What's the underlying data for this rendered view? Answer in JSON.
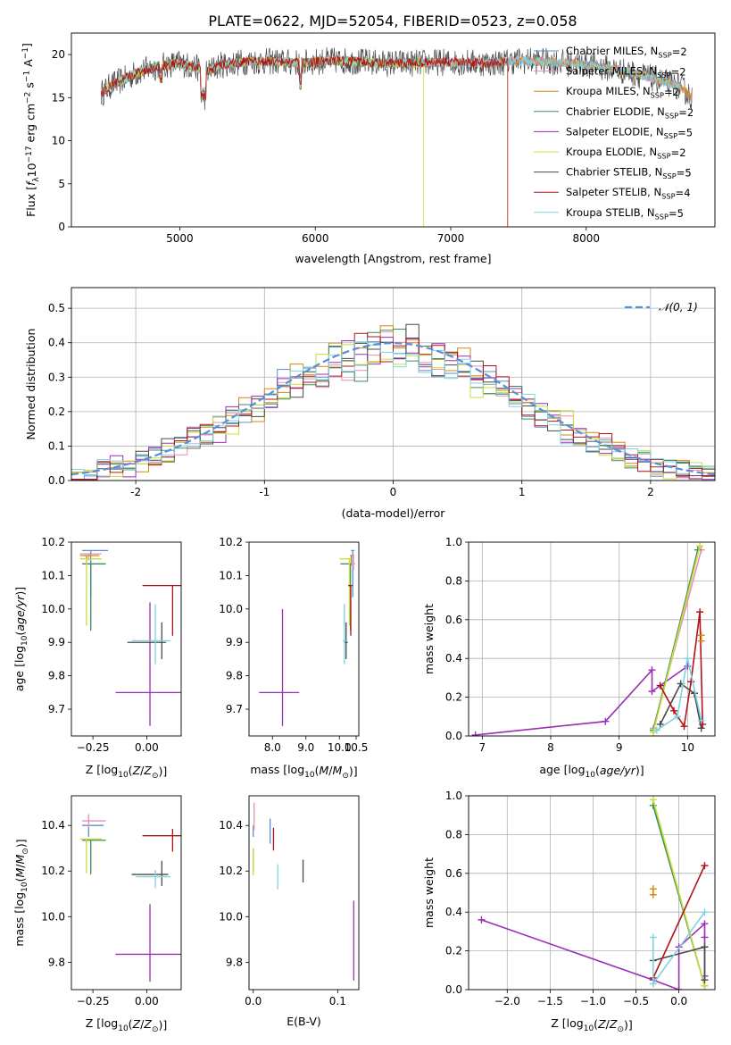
{
  "figure_title": "PLATE=0622, MJD=52054, FIBERID=0523, z=0.058",
  "series_styles": [
    {
      "name": "Chabrier MILES",
      "color": "#5b8ed6"
    },
    {
      "name": "Salpeter MILES",
      "color": "#e88fb4"
    },
    {
      "name": "Kroupa MILES",
      "color": "#d4880f"
    },
    {
      "name": "Chabrier ELODIE",
      "color": "#3c8c5a"
    },
    {
      "name": "Salpeter ELODIE",
      "color": "#9b2fb5"
    },
    {
      "name": "Kroupa ELODIE",
      "color": "#c7df3a"
    },
    {
      "name": "Chabrier STELIB",
      "color": "#4a4a4a"
    },
    {
      "name": "Salpeter STELIB",
      "color": "#b3121a"
    },
    {
      "name": "Kroupa STELIB",
      "color": "#7fd3e0"
    }
  ],
  "chart_data": [
    {
      "id": "spectrum",
      "type": "line",
      "title": "PLATE=0622, MJD=52054, FIBERID=0523, z=0.058",
      "xlabel": "wavelength [Angstrom, rest frame]",
      "ylabel_parts": [
        "Flux [",
        "f",
        "λ",
        "10",
        "−17",
        " erg cm",
        "−2",
        " s",
        "−1",
        " A",
        "−1",
        "]"
      ],
      "xlim": [
        4200,
        8950
      ],
      "ylim": [
        0,
        22.5
      ],
      "xticks": [
        5000,
        6000,
        7000,
        8000
      ],
      "yticks": [
        0,
        5,
        10,
        15,
        20
      ],
      "legend": [
        {
          "label": "Chabrier MILES, N",
          "sub": "SSP",
          "tail": "=2"
        },
        {
          "label": "Salpeter MILES, N",
          "sub": "SSP",
          "tail": "=2"
        },
        {
          "label": "Kroupa MILES, N",
          "sub": "SSP",
          "tail": "=2"
        },
        {
          "label": "Chabrier ELODIE, N",
          "sub": "SSP",
          "tail": "=2"
        },
        {
          "label": "Salpeter ELODIE, N",
          "sub": "SSP",
          "tail": "=5"
        },
        {
          "label": "Kroupa ELODIE, N",
          "sub": "SSP",
          "tail": "=2"
        },
        {
          "label": "Chabrier STELIB, N",
          "sub": "SSP",
          "tail": "=5"
        },
        {
          "label": "Salpeter STELIB, N",
          "sub": "SSP",
          "tail": "=4"
        },
        {
          "label": "Kroupa STELIB, N",
          "sub": "SSP",
          "tail": "=5"
        }
      ],
      "legend_position": "upper-right",
      "continuum": {
        "x": [
          4420,
          4500,
          4600,
          4700,
          4800,
          4900,
          5000,
          5100,
          5200,
          5300,
          5500,
          5700,
          5900,
          6100,
          6300,
          6500,
          6700,
          6900,
          7100,
          7300,
          7500,
          7700,
          7900,
          8100,
          8300,
          8500,
          8700,
          8780
        ],
        "y": [
          15.5,
          16.5,
          17.2,
          18.0,
          18.5,
          18.8,
          19.0,
          18.6,
          18.0,
          18.8,
          19.2,
          19.2,
          19.0,
          19.3,
          19.2,
          19.0,
          19.0,
          19.1,
          19.1,
          19.0,
          19.3,
          19.2,
          19.0,
          18.6,
          18.0,
          17.2,
          16.2,
          15.0
        ]
      },
      "drops": [
        {
          "series": "Kroupa ELODIE",
          "x": 6800
        },
        {
          "series": "Salpeter STELIB",
          "x": 7420
        }
      ]
    },
    {
      "id": "residuals",
      "type": "line",
      "xlabel": "(data-model)/error",
      "ylabel": "Normed distribution",
      "xlim": [
        -2.5,
        2.5
      ],
      "ylim": [
        0,
        0.56
      ],
      "xticks": [
        -2,
        -1,
        0,
        1,
        2
      ],
      "yticks": [
        0.0,
        0.1,
        0.2,
        0.3,
        0.4,
        0.5
      ],
      "legend": [
        {
          "label": "𝒩(0, 1)"
        }
      ],
      "legend_position": "upper-right",
      "bin_width": 0.1
    },
    {
      "id": "age-vs-Z",
      "type": "scatter",
      "xlabel": "Z [log10(Z/Z⊙)]",
      "ylabel": "age  [log10(age/yr)]",
      "xlim": [
        -0.35,
        0.16
      ],
      "ylim": [
        9.62,
        10.2
      ],
      "xticks": [
        -0.25,
        0.0
      ],
      "xtick_labels": [
        "−0.25",
        "0.00"
      ],
      "yticks": [
        9.7,
        9.8,
        9.9,
        10.0,
        10.1,
        10.2
      ],
      "points": [
        {
          "series": "Chabrier MILES",
          "x": -0.26,
          "y": 10.175,
          "xerr": [
            0.04,
            0.08
          ],
          "yerr": [
            0.14,
            0.0
          ]
        },
        {
          "series": "Salpeter MILES",
          "x": -0.27,
          "y": 10.165,
          "xerr": [
            0.04,
            0.06
          ],
          "yerr": [
            0.02,
            0.0
          ]
        },
        {
          "series": "Kroupa MILES",
          "x": -0.28,
          "y": 10.16,
          "xerr": [
            0.03,
            0.06
          ],
          "yerr": [
            0.03,
            0.0
          ]
        },
        {
          "series": "Chabrier ELODIE",
          "x": -0.26,
          "y": 10.135,
          "xerr": [
            0.04,
            0.07
          ],
          "yerr": [
            0.2,
            0.0
          ]
        },
        {
          "series": "Kroupa ELODIE",
          "x": -0.28,
          "y": 10.15,
          "xerr": [
            0.03,
            0.07
          ],
          "yerr": [
            0.2,
            0.0
          ]
        },
        {
          "series": "Salpeter ELODIE",
          "x": 0.015,
          "y": 9.75,
          "xerr": [
            0.16,
            0.16
          ],
          "yerr": [
            0.1,
            0.27
          ]
        },
        {
          "series": "Salpeter STELIB",
          "x": 0.12,
          "y": 10.07,
          "xerr": [
            0.14,
            0.05
          ],
          "yerr": [
            0.15,
            0.0
          ]
        },
        {
          "series": "Chabrier STELIB",
          "x": 0.07,
          "y": 9.9,
          "xerr": [
            0.16,
            0.02
          ],
          "yerr": [
            0.05,
            0.06
          ]
        },
        {
          "series": "Kroupa STELIB",
          "x": 0.04,
          "y": 9.905,
          "xerr": [
            0.11,
            0.07
          ],
          "yerr": [
            0.07,
            0.11
          ]
        }
      ]
    },
    {
      "id": "age-vs-mass",
      "type": "scatter",
      "xlabel": "mass [log10(M/M⊙)]",
      "xlim": [
        7.3,
        10.58
      ],
      "ylim": [
        9.62,
        10.2
      ],
      "xticks": [
        8.0,
        8.5,
        9.0,
        9.5,
        10.0,
        10.5
      ],
      "xtick_labels": [
        "",
        "",
        "",
        "",
        "",
        "10.5"
      ],
      "xtick_labels_shown": [
        "8.0",
        "8.5",
        "9.0",
        "9.5",
        "10.0",
        "10.5"
      ],
      "yticks": [
        9.7,
        9.8,
        9.9,
        10.0,
        10.1,
        10.2
      ],
      "points": [
        {
          "series": "Chabrier MILES",
          "x": 10.4,
          "y": 10.175,
          "xerr": [
            0.05,
            0.05
          ],
          "yerr": [
            0.14,
            0.0
          ]
        },
        {
          "series": "Salpeter MILES",
          "x": 10.42,
          "y": 10.135,
          "xerr": [
            0.05,
            0.05
          ],
          "yerr": [
            0.02,
            0.03
          ]
        },
        {
          "series": "Kroupa MILES",
          "x": 10.35,
          "y": 10.16,
          "xerr": [
            0.03,
            0.03
          ],
          "yerr": [
            0.03,
            0.0
          ]
        },
        {
          "series": "Chabrier ELODIE",
          "x": 10.33,
          "y": 10.135,
          "xerr": [
            0.3,
            0.02
          ],
          "yerr": [
            0.2,
            0.0
          ]
        },
        {
          "series": "Kroupa ELODIE",
          "x": 10.3,
          "y": 10.15,
          "xerr": [
            0.3,
            0.02
          ],
          "yerr": [
            0.2,
            0.0
          ]
        },
        {
          "series": "Salpeter ELODIE",
          "x": 8.3,
          "y": 9.75,
          "xerr": [
            0.7,
            0.5
          ],
          "yerr": [
            0.1,
            0.25
          ]
        },
        {
          "series": "Salpeter STELIB",
          "x": 10.34,
          "y": 10.07,
          "xerr": [
            0.08,
            0.05
          ],
          "yerr": [
            0.15,
            0.0
          ]
        },
        {
          "series": "Chabrier STELIB",
          "x": 10.2,
          "y": 9.9,
          "xerr": [
            0.05,
            0.05
          ],
          "yerr": [
            0.05,
            0.06
          ]
        },
        {
          "series": "Kroupa STELIB",
          "x": 10.15,
          "y": 9.905,
          "xerr": [
            0.05,
            0.05
          ],
          "yerr": [
            0.07,
            0.11
          ]
        }
      ]
    },
    {
      "id": "weight-vs-age",
      "type": "line",
      "xlabel": "age  [log10(age/yr)]",
      "ylabel": "mass weight",
      "xlim": [
        6.8,
        10.4
      ],
      "ylim": [
        0,
        1.0
      ],
      "xticks": [
        7,
        8,
        9,
        10
      ],
      "yticks": [
        0.0,
        0.2,
        0.4,
        0.6,
        0.8,
        1.0
      ],
      "series": [
        {
          "name": "Salpeter ELODIE",
          "x": [
            6.9,
            8.8,
            9.48,
            9.48,
            10.0
          ],
          "y": [
            0.005,
            0.075,
            0.34,
            0.23,
            0.36
          ]
        },
        {
          "name": "Salpeter MILES",
          "x": [
            9.5,
            10.2
          ],
          "y": [
            0.04,
            0.96
          ]
        },
        {
          "name": "Chabrier ELODIE",
          "x": [
            9.5,
            10.15
          ],
          "y": [
            0.03,
            0.96
          ]
        },
        {
          "name": "Kroupa ELODIE",
          "x": [
            9.5,
            10.18
          ],
          "y": [
            0.02,
            0.98
          ]
        },
        {
          "name": "Chabrier STELIB",
          "x": [
            9.6,
            9.9,
            10.1,
            10.2
          ],
          "y": [
            0.06,
            0.27,
            0.22,
            0.04
          ]
        },
        {
          "name": "Salpeter STELIB",
          "x": [
            9.6,
            9.8,
            9.95,
            10.05,
            10.18,
            10.22
          ],
          "y": [
            0.26,
            0.13,
            0.05,
            0.28,
            0.64,
            0.06
          ]
        },
        {
          "name": "Kroupa STELIB",
          "x": [
            9.55,
            9.85,
            10.0,
            10.2
          ],
          "y": [
            0.03,
            0.1,
            0.4,
            0.08
          ]
        },
        {
          "name": "Kroupa MILES",
          "x": [
            10.2,
            10.2
          ],
          "y": [
            0.49,
            0.52
          ]
        }
      ]
    },
    {
      "id": "mass-vs-Z",
      "type": "scatter",
      "xlabel": "Z [log10(Z/Z⊙)]",
      "ylabel": "mass [log10(M/M⊙)]",
      "xlim": [
        -0.35,
        0.16
      ],
      "ylim": [
        9.68,
        10.53
      ],
      "xticks": [
        -0.25,
        0.0
      ],
      "xtick_labels": [
        "−0.25",
        "0.00"
      ],
      "yticks": [
        9.8,
        10.0,
        10.2,
        10.4
      ],
      "points": [
        {
          "series": "Chabrier MILES",
          "x": -0.27,
          "y": 10.4,
          "xerr": [
            0.03,
            0.07
          ],
          "yerr": [
            0.05,
            0.0
          ]
        },
        {
          "series": "Salpeter MILES",
          "x": -0.27,
          "y": 10.42,
          "xerr": [
            0.03,
            0.08
          ],
          "yerr": [
            0.03,
            0.03
          ]
        },
        {
          "series": "Kroupa MILES",
          "x": -0.28,
          "y": 10.34,
          "xerr": [
            0.02,
            0.07
          ],
          "yerr": [
            0.02,
            0.0
          ]
        },
        {
          "series": "Chabrier ELODIE",
          "x": -0.26,
          "y": 10.335,
          "xerr": [
            0.04,
            0.07
          ],
          "yerr": [
            0.15,
            0.0
          ]
        },
        {
          "series": "Kroupa ELODIE",
          "x": -0.28,
          "y": 10.34,
          "xerr": [
            0.03,
            0.07
          ],
          "yerr": [
            0.15,
            0.0
          ]
        },
        {
          "series": "Salpeter ELODIE",
          "x": 0.015,
          "y": 9.835,
          "xerr": [
            0.16,
            0.16
          ],
          "yerr": [
            0.12,
            0.22
          ]
        },
        {
          "series": "Salpeter STELIB",
          "x": 0.12,
          "y": 10.355,
          "xerr": [
            0.14,
            0.07
          ],
          "yerr": [
            0.07,
            0.03
          ]
        },
        {
          "series": "Chabrier STELIB",
          "x": 0.07,
          "y": 10.185,
          "xerr": [
            0.14,
            0.03
          ],
          "yerr": [
            0.05,
            0.06
          ]
        },
        {
          "series": "Kroupa STELIB",
          "x": 0.04,
          "y": 10.175,
          "xerr": [
            0.09,
            0.07
          ],
          "yerr": [
            0.05,
            0.03
          ]
        }
      ]
    },
    {
      "id": "mass-vs-ebv",
      "type": "scatter",
      "xlabel": "E(B-V)",
      "xlim": [
        -0.005,
        0.125
      ],
      "ylim": [
        9.68,
        10.53
      ],
      "xticks": [
        0.0,
        0.1
      ],
      "xtick_labels": [
        "0.0",
        "0.1"
      ],
      "yticks": [
        9.8,
        10.0,
        10.2,
        10.4
      ],
      "points": [
        {
          "series": "Chabrier MILES",
          "x": 0.0,
          "y": 10.4,
          "xerr": [
            0.0,
            0.0
          ],
          "yerr": [
            0.05,
            0.0
          ]
        },
        {
          "series": "Salpeter MILES",
          "x": 0.001,
          "y": 10.44,
          "xerr": [
            0.0,
            0.0
          ],
          "yerr": [
            0.06,
            0.06
          ]
        },
        {
          "series": "Chabrier ELODIE",
          "x": 0.0,
          "y": 10.3,
          "xerr": [
            0.0,
            0.0
          ],
          "yerr": [
            0.1,
            0.0
          ]
        },
        {
          "series": "Kroupa ELODIE",
          "x": 0.0,
          "y": 10.3,
          "xerr": [
            0.0,
            0.0
          ],
          "yerr": [
            0.12,
            0.0
          ]
        },
        {
          "series": "Chabrier MILES",
          "x": 0.02,
          "y": 10.38,
          "xerr": [
            0.0,
            0.0
          ],
          "yerr": [
            0.06,
            0.05
          ]
        },
        {
          "series": "Salpeter STELIB",
          "x": 0.024,
          "y": 10.34,
          "xerr": [
            0.0,
            0.0
          ],
          "yerr": [
            0.05,
            0.05
          ]
        },
        {
          "series": "Kroupa STELIB",
          "x": 0.029,
          "y": 10.18,
          "xerr": [
            0.0,
            0.0
          ],
          "yerr": [
            0.06,
            0.05
          ]
        },
        {
          "series": "Chabrier STELIB",
          "x": 0.059,
          "y": 10.2,
          "xerr": [
            0.0,
            0.0
          ],
          "yerr": [
            0.05,
            0.05
          ]
        },
        {
          "series": "Salpeter ELODIE",
          "x": 0.119,
          "y": 9.95,
          "xerr": [
            0.0,
            0.0
          ],
          "yerr": [
            0.23,
            0.12
          ]
        }
      ]
    },
    {
      "id": "weight-vs-Z",
      "type": "line",
      "xlabel": "Z [log10(Z/Z⊙)]",
      "ylabel": "mass weight",
      "xlim": [
        -2.45,
        0.42
      ],
      "ylim": [
        0,
        1.0
      ],
      "xticks": [
        -2.0,
        -1.5,
        -1.0,
        -0.5,
        0.0
      ],
      "xtick_labels": [
        "−2.0",
        "−1.5",
        "−1.0",
        "−0.5",
        "0.0"
      ],
      "yticks": [
        0.0,
        0.2,
        0.4,
        0.6,
        0.8,
        1.0
      ],
      "series": [
        {
          "name": "Salpeter ELODIE",
          "x": [
            -2.3,
            -0.3,
            0.0,
            0.0,
            0.3,
            0.3,
            0.3
          ],
          "y": [
            0.36,
            0.05,
            0.0,
            0.22,
            0.34,
            0.27,
            0.07
          ]
        },
        {
          "name": "Chabrier ELODIE",
          "x": [
            -0.3,
            0.3
          ],
          "y": [
            0.95,
            0.02
          ]
        },
        {
          "name": "Kroupa ELODIE",
          "x": [
            -0.3,
            0.3
          ],
          "y": [
            0.98,
            0.02
          ]
        },
        {
          "name": "Chabrier STELIB",
          "x": [
            -0.3,
            0.3,
            0.3
          ],
          "y": [
            0.15,
            0.22,
            0.05
          ]
        },
        {
          "name": "Salpeter STELIB",
          "x": [
            -0.3,
            0.3
          ],
          "y": [
            0.06,
            0.64
          ]
        },
        {
          "name": "Kroupa STELIB",
          "x": [
            -0.3,
            -0.3,
            0.3
          ],
          "y": [
            0.27,
            0.03,
            0.4
          ]
        },
        {
          "name": "Kroupa MILES",
          "x": [
            -0.3,
            -0.3
          ],
          "y": [
            0.49,
            0.52
          ]
        }
      ]
    }
  ]
}
